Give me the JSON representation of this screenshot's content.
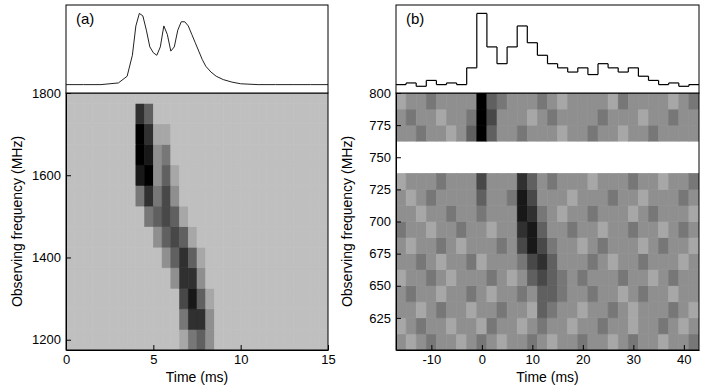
{
  "chart_data": [
    {
      "type": "heatmap",
      "label": "(a)",
      "xlabel": "Time (ms)",
      "ylabel": "Observing frequency (MHz)",
      "xlim": [
        0,
        15
      ],
      "xticks": [
        0,
        5,
        10,
        15
      ],
      "ylim": [
        1175,
        1800
      ],
      "yticks": [
        1200,
        1400,
        1600,
        1800
      ],
      "color_range": [
        0,
        9
      ],
      "x_bins": [
        0,
        0.5,
        1,
        1.5,
        2,
        2.5,
        3,
        3.5,
        4,
        4.5,
        5,
        5.5,
        6,
        6.5,
        7,
        7.5,
        8,
        8.5,
        9,
        9.5,
        10,
        10.5,
        11,
        11.5,
        12,
        12.5,
        13,
        13.5,
        14,
        14.5,
        15
      ],
      "y_bins": [
        1175,
        1225,
        1275,
        1325,
        1375,
        1425,
        1475,
        1525,
        1575,
        1625,
        1675,
        1725,
        1775,
        1800
      ],
      "cells": [
        [
          1,
          1,
          1,
          1,
          1,
          1,
          1,
          1,
          1,
          1,
          1,
          1,
          1,
          2,
          4,
          5,
          3,
          1,
          1,
          1,
          1,
          1,
          1,
          1,
          1,
          1,
          1,
          1,
          1,
          1
        ],
        [
          1,
          1,
          1,
          1,
          1,
          1,
          1,
          1,
          1,
          1,
          1,
          1,
          1,
          4,
          7,
          7,
          3,
          1,
          1,
          1,
          1,
          1,
          1,
          1,
          1,
          1,
          1,
          1,
          1,
          1
        ],
        [
          1,
          1,
          1,
          1,
          1,
          1,
          1,
          1,
          1,
          1,
          1,
          1,
          1,
          6,
          8,
          5,
          2,
          1,
          1,
          1,
          1,
          1,
          1,
          1,
          1,
          1,
          1,
          1,
          1,
          1
        ],
        [
          1,
          1,
          1,
          1,
          1,
          1,
          1,
          1,
          1,
          1,
          1,
          1,
          3,
          7,
          7,
          3,
          1,
          1,
          1,
          1,
          1,
          1,
          1,
          1,
          1,
          1,
          1,
          1,
          1,
          1
        ],
        [
          1,
          1,
          1,
          1,
          1,
          1,
          1,
          1,
          1,
          1,
          1,
          3,
          5,
          7,
          5,
          2,
          1,
          1,
          1,
          1,
          1,
          1,
          1,
          1,
          1,
          1,
          1,
          1,
          1,
          1
        ],
        [
          1,
          1,
          1,
          1,
          1,
          1,
          1,
          1,
          1,
          1,
          3,
          5,
          6,
          5,
          2,
          1,
          1,
          1,
          1,
          1,
          1,
          1,
          1,
          1,
          1,
          1,
          1,
          1,
          1,
          1
        ],
        [
          1,
          1,
          1,
          1,
          1,
          1,
          1,
          1,
          1,
          4,
          5,
          6,
          5,
          2,
          1,
          1,
          1,
          1,
          1,
          1,
          1,
          1,
          1,
          1,
          1,
          1,
          1,
          1,
          1,
          1
        ],
        [
          1,
          1,
          1,
          1,
          1,
          1,
          1,
          1,
          4,
          7,
          4,
          6,
          3,
          1,
          1,
          1,
          1,
          1,
          1,
          1,
          1,
          1,
          1,
          1,
          1,
          1,
          1,
          1,
          1,
          1
        ],
        [
          1,
          1,
          1,
          1,
          1,
          1,
          1,
          1,
          8,
          9,
          3,
          5,
          2,
          1,
          1,
          1,
          1,
          1,
          1,
          1,
          1,
          1,
          1,
          1,
          1,
          1,
          1,
          1,
          1,
          1
        ],
        [
          1,
          1,
          1,
          1,
          1,
          1,
          1,
          1,
          9,
          8,
          3,
          4,
          1,
          1,
          1,
          1,
          1,
          1,
          1,
          1,
          1,
          1,
          1,
          1,
          1,
          1,
          1,
          1,
          1,
          1
        ],
        [
          1,
          1,
          1,
          1,
          1,
          1,
          1,
          1,
          9,
          7,
          2,
          2,
          1,
          1,
          1,
          1,
          1,
          1,
          1,
          1,
          1,
          1,
          1,
          1,
          1,
          1,
          1,
          1,
          1,
          1
        ],
        [
          1,
          1,
          1,
          1,
          1,
          1,
          1,
          1,
          7,
          5,
          1,
          1,
          1,
          1,
          1,
          1,
          1,
          1,
          1,
          1,
          1,
          1,
          1,
          1,
          1,
          1,
          1,
          1,
          1,
          1
        ],
        [
          1,
          1,
          1,
          1,
          1,
          1,
          1,
          1,
          1,
          1,
          1,
          1,
          1,
          1,
          1,
          1,
          1,
          1,
          1,
          1,
          1,
          1,
          1,
          1,
          1,
          1,
          1,
          1,
          1,
          1
        ]
      ],
      "profile": {
        "type": "line",
        "tick_labels": false,
        "ylim": [
          0,
          1.05
        ],
        "x": [
          0,
          1,
          2,
          3,
          3.5,
          3.8,
          4.0,
          4.2,
          4.4,
          4.6,
          4.8,
          5.0,
          5.2,
          5.4,
          5.6,
          5.8,
          6.0,
          6.2,
          6.4,
          6.6,
          6.8,
          7.0,
          7.2,
          7.4,
          7.6,
          7.8,
          8.0,
          8.3,
          8.6,
          9,
          9.5,
          10,
          11,
          12,
          13,
          14,
          15
        ],
        "values": [
          0.1,
          0.1,
          0.1,
          0.12,
          0.2,
          0.45,
          0.8,
          0.95,
          0.92,
          0.75,
          0.55,
          0.48,
          0.45,
          0.55,
          0.8,
          0.7,
          0.5,
          0.55,
          0.75,
          0.85,
          0.85,
          0.8,
          0.7,
          0.6,
          0.5,
          0.4,
          0.32,
          0.25,
          0.2,
          0.16,
          0.13,
          0.11,
          0.1,
          0.1,
          0.1,
          0.1,
          0.1
        ]
      }
    },
    {
      "type": "heatmap",
      "label": "(b)",
      "xlabel": "Time (ms)",
      "ylabel": "Observing frequency (MHz)",
      "xlim": [
        -17,
        43
      ],
      "xticks": [
        -10,
        0,
        10,
        20,
        30,
        40
      ],
      "ylim": [
        600,
        800
      ],
      "yticks": [
        625,
        650,
        675,
        700,
        725,
        750,
        775,
        800
      ],
      "color_range": [
        0,
        9
      ],
      "x_bins": [
        -17,
        -15,
        -13,
        -11,
        -9,
        -7,
        -5,
        -3,
        -1,
        1,
        3,
        5,
        7,
        9,
        11,
        13,
        15,
        17,
        19,
        21,
        23,
        25,
        27,
        29,
        31,
        33,
        35,
        37,
        39,
        41,
        43
      ],
      "y_bins": [
        600,
        612.5,
        625,
        637.5,
        650,
        662.5,
        675,
        687.5,
        700,
        712.5,
        725,
        737.5,
        750,
        762.5,
        775,
        787.5,
        800
      ],
      "cells": [
        [
          3,
          2,
          3,
          4,
          3,
          3,
          2,
          3,
          4,
          3,
          2,
          3,
          3,
          4,
          3,
          2,
          3,
          3,
          4,
          3,
          3,
          2,
          3,
          4,
          3,
          3,
          2,
          3,
          3,
          4
        ],
        [
          2,
          3,
          4,
          3,
          3,
          2,
          3,
          3,
          2,
          4,
          3,
          3,
          2,
          3,
          4,
          3,
          3,
          2,
          3,
          3,
          4,
          3,
          3,
          2,
          3,
          3,
          4,
          3,
          2,
          3
        ],
        [
          3,
          3,
          2,
          3,
          4,
          3,
          3,
          2,
          3,
          3,
          4,
          3,
          3,
          2,
          5,
          4,
          3,
          3,
          2,
          3,
          3,
          4,
          3,
          2,
          3,
          3,
          3,
          4,
          3,
          2
        ],
        [
          3,
          4,
          3,
          3,
          2,
          3,
          3,
          4,
          3,
          2,
          3,
          3,
          4,
          3,
          5,
          5,
          4,
          3,
          3,
          4,
          3,
          3,
          2,
          3,
          4,
          3,
          3,
          2,
          3,
          3
        ],
        [
          2,
          3,
          3,
          4,
          3,
          2,
          3,
          3,
          3,
          4,
          3,
          2,
          3,
          5,
          6,
          5,
          4,
          3,
          4,
          3,
          3,
          3,
          4,
          3,
          3,
          2,
          3,
          4,
          3,
          3
        ],
        [
          3,
          3,
          4,
          3,
          2,
          3,
          3,
          4,
          2,
          3,
          3,
          3,
          4,
          6,
          7,
          5,
          3,
          3,
          3,
          4,
          3,
          2,
          3,
          3,
          4,
          3,
          3,
          3,
          2,
          3
        ],
        [
          3,
          2,
          3,
          3,
          4,
          3,
          2,
          3,
          3,
          3,
          4,
          3,
          6,
          8,
          6,
          4,
          3,
          3,
          2,
          3,
          4,
          3,
          3,
          3,
          2,
          3,
          4,
          3,
          3,
          2
        ],
        [
          4,
          3,
          3,
          2,
          3,
          3,
          4,
          3,
          3,
          2,
          3,
          3,
          7,
          8,
          5,
          3,
          3,
          4,
          3,
          3,
          2,
          3,
          3,
          4,
          3,
          3,
          2,
          3,
          4,
          3
        ],
        [
          3,
          3,
          2,
          3,
          3,
          4,
          3,
          3,
          4,
          3,
          3,
          3,
          8,
          7,
          4,
          3,
          2,
          3,
          3,
          4,
          3,
          3,
          3,
          2,
          3,
          4,
          3,
          3,
          3,
          2
        ],
        [
          3,
          2,
          3,
          4,
          3,
          3,
          3,
          3,
          5,
          3,
          3,
          4,
          8,
          6,
          3,
          3,
          3,
          2,
          3,
          3,
          3,
          4,
          3,
          3,
          2,
          3,
          3,
          3,
          4,
          3
        ],
        [
          2,
          3,
          3,
          3,
          4,
          3,
          3,
          3,
          6,
          3,
          3,
          3,
          7,
          5,
          3,
          4,
          3,
          3,
          3,
          2,
          3,
          3,
          3,
          4,
          3,
          3,
          2,
          3,
          3,
          4
        ],
        null,
        null,
        [
          3,
          3,
          4,
          3,
          3,
          2,
          3,
          5,
          9,
          5,
          3,
          3,
          4,
          3,
          3,
          3,
          2,
          3,
          3,
          4,
          3,
          3,
          2,
          3,
          3,
          4,
          3,
          3,
          3,
          3
        ],
        [
          3,
          4,
          3,
          3,
          2,
          3,
          3,
          4,
          9,
          6,
          3,
          3,
          3,
          2,
          3,
          4,
          3,
          3,
          3,
          3,
          4,
          3,
          3,
          3,
          2,
          3,
          3,
          4,
          3,
          3
        ],
        [
          2,
          3,
          3,
          4,
          3,
          3,
          3,
          3,
          9,
          5,
          4,
          3,
          3,
          3,
          4,
          3,
          2,
          3,
          3,
          3,
          3,
          2,
          4,
          3,
          3,
          3,
          3,
          2,
          3,
          4
        ]
      ],
      "profile": {
        "type": "step",
        "tick_labels": false,
        "ylim": [
          0,
          1.05
        ],
        "bins": [
          -17,
          -15,
          -13,
          -11,
          -9,
          -7,
          -5,
          -3,
          -1,
          1,
          3,
          5,
          7,
          9,
          11,
          13,
          15,
          17,
          19,
          21,
          23,
          25,
          27,
          29,
          31,
          33,
          35,
          37,
          39,
          41,
          43
        ],
        "values": [
          0.1,
          0.12,
          0.08,
          0.15,
          0.1,
          0.12,
          0.1,
          0.3,
          0.95,
          0.55,
          0.35,
          0.55,
          0.8,
          0.6,
          0.45,
          0.35,
          0.3,
          0.25,
          0.3,
          0.22,
          0.35,
          0.3,
          0.25,
          0.3,
          0.2,
          0.15,
          0.1,
          0.12,
          0.08,
          0.1
        ]
      }
    }
  ]
}
